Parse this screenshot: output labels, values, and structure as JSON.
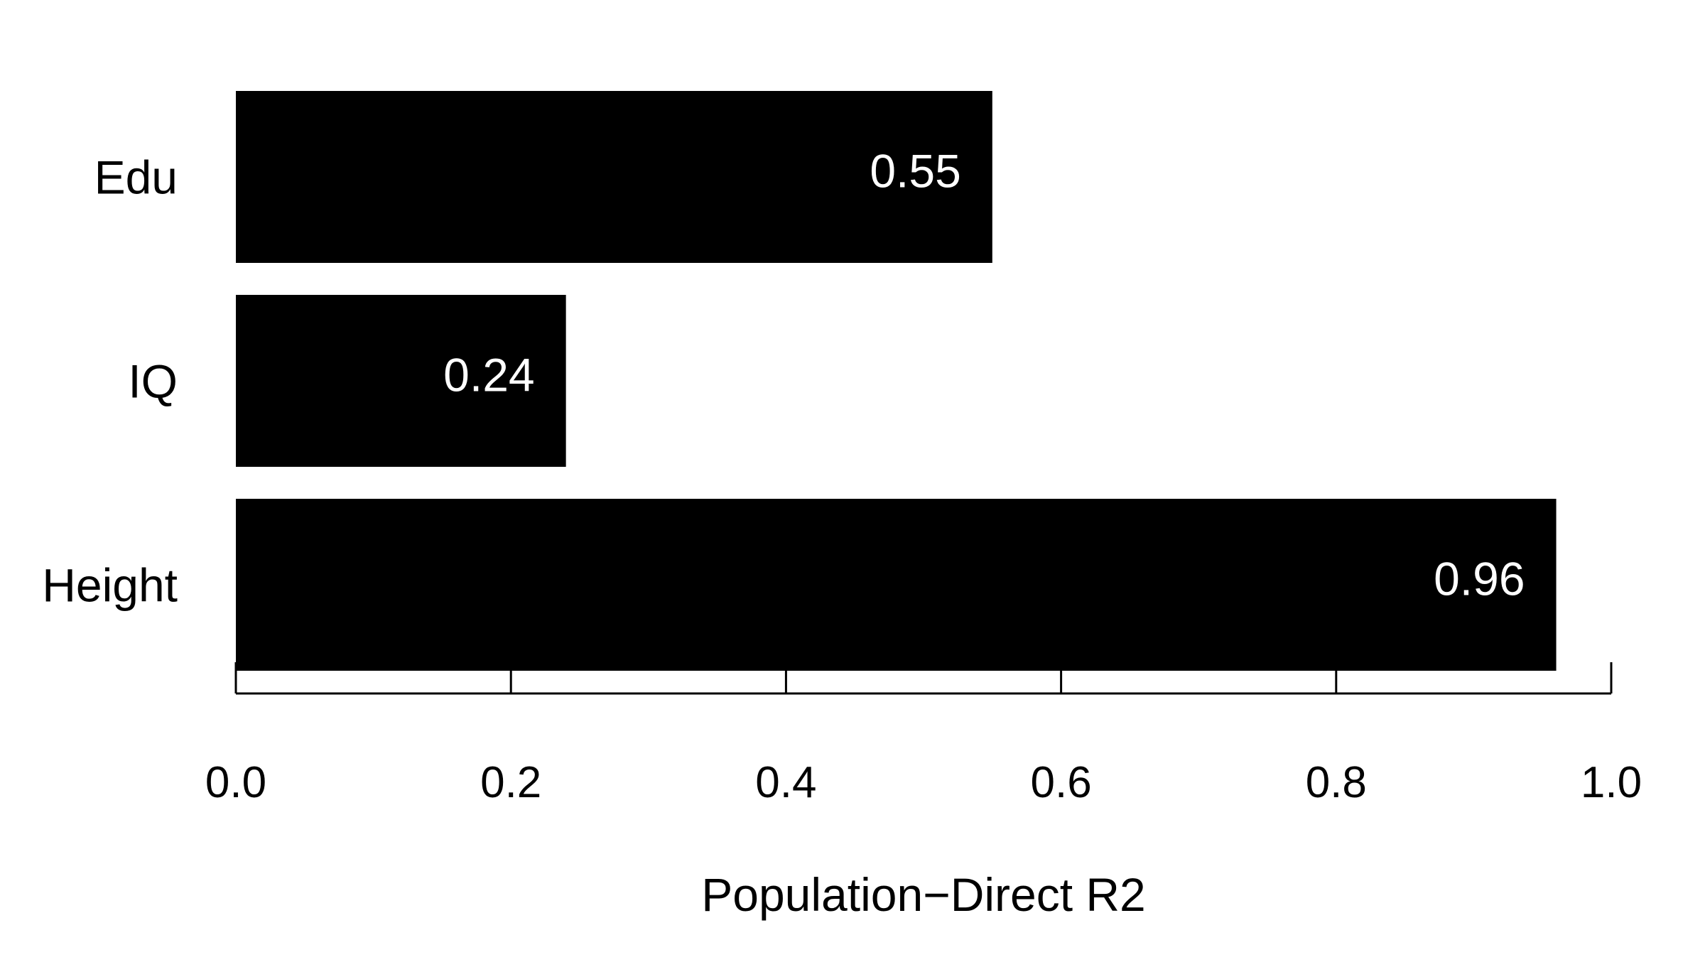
{
  "chart_data": {
    "type": "bar",
    "orientation": "horizontal",
    "categories": [
      "Edu",
      "IQ",
      "Height"
    ],
    "values": [
      0.55,
      0.24,
      0.96
    ],
    "data_labels": [
      "0.55",
      "0.24",
      "0.96"
    ],
    "xlabel": "Population−Direct R2",
    "ylabel": "",
    "xlim": [
      0,
      1
    ],
    "xticks": [
      0.0,
      0.2,
      0.4,
      0.6,
      0.8,
      1.0
    ],
    "xtick_labels": [
      "0.0",
      "0.2",
      "0.4",
      "0.6",
      "0.8",
      "1.0"
    ],
    "grid": false,
    "legend": "none",
    "bar_color": "#000000",
    "label_color": "#ffffff"
  }
}
